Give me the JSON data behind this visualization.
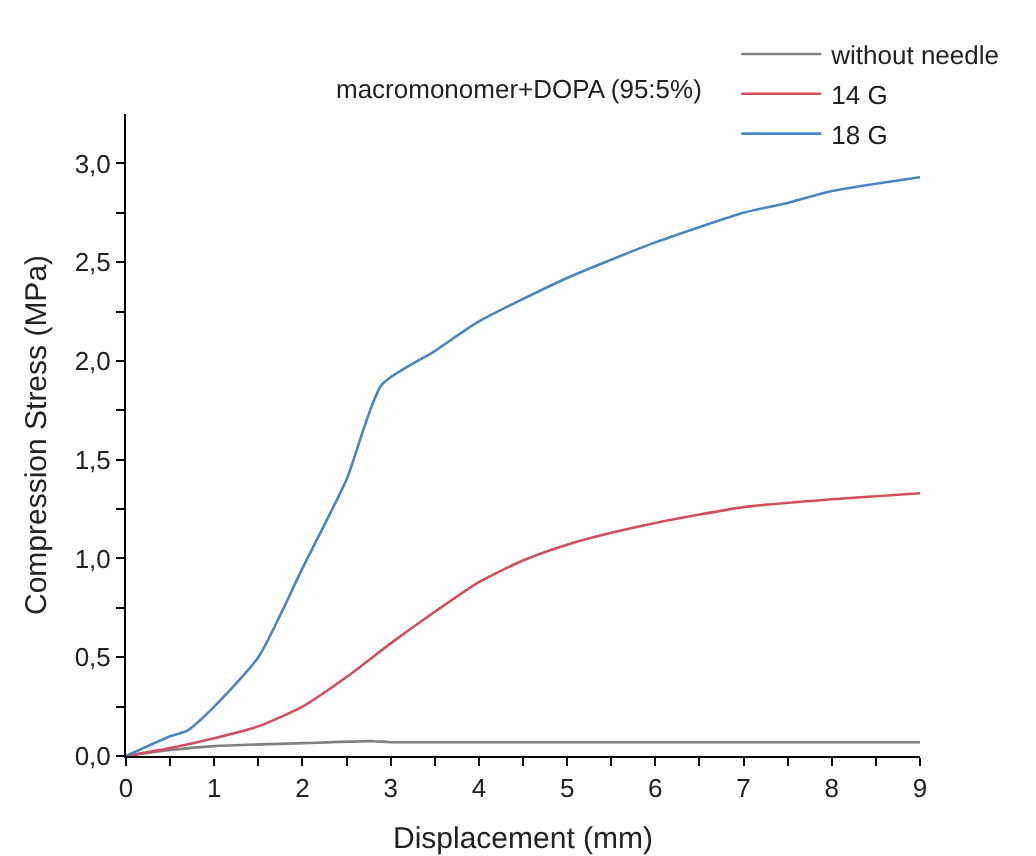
{
  "chart_data": {
    "type": "line",
    "xlabel": "Displacement (mm)",
    "ylabel": "Compression Stress (MPa)",
    "annotations": [
      "macromonomer+DOPA (95:5%)"
    ],
    "xlim": [
      0,
      9
    ],
    "ylim": [
      0,
      3.25
    ],
    "xticks": [
      0,
      {
        "value": 0.5,
        "label": null
      },
      1,
      {
        "value": 1.5,
        "label": null
      },
      2,
      {
        "value": 2.5,
        "label": null
      },
      3,
      {
        "value": 3.5,
        "label": null
      },
      4,
      {
        "value": 4.5,
        "label": null
      },
      5,
      {
        "value": 5.5,
        "label": null
      },
      6,
      {
        "value": 6.5,
        "label": null
      },
      7,
      {
        "value": 7.5,
        "label": null
      },
      8,
      {
        "value": 8.5,
        "label": null
      },
      9
    ],
    "yticks": [
      {
        "value": 0,
        "label": "0,0"
      },
      {
        "value": 0.25,
        "label": null
      },
      {
        "value": 0.5,
        "label": "0,5"
      },
      {
        "value": 0.75,
        "label": null
      },
      {
        "value": 1,
        "label": "1,0"
      },
      {
        "value": 1.25,
        "label": null
      },
      {
        "value": 1.5,
        "label": "1,5"
      },
      {
        "value": 1.75,
        "label": null
      },
      {
        "value": 2,
        "label": "2,0"
      },
      {
        "value": 2.25,
        "label": null
      },
      {
        "value": 2.5,
        "label": "2,5"
      },
      {
        "value": 2.75,
        "label": null
      },
      {
        "value": 3,
        "label": "3,0"
      }
    ],
    "grid": false,
    "legend": "top right",
    "marker": "none",
    "line_style": "solid",
    "series": [
      {
        "name": "without needle",
        "color": "#808080",
        "x": [
          0,
          0.5,
          1,
          2,
          2.8,
          3,
          9
        ],
        "values": [
          0,
          0.03,
          0.05,
          0.065,
          0.075,
          0.07,
          0.07
        ]
      },
      {
        "name": "14 G",
        "color": "#d05060",
        "x": [
          0,
          0.5,
          1,
          1.5,
          2,
          2.5,
          3,
          3.5,
          4,
          4.5,
          5,
          5.5,
          6,
          7,
          8,
          9
        ],
        "values": [
          0,
          0.04,
          0.09,
          0.15,
          0.25,
          0.4,
          0.57,
          0.73,
          0.88,
          0.99,
          1.07,
          1.13,
          1.18,
          1.26,
          1.3,
          1.33
        ]
      },
      {
        "name": "18 G",
        "color": "#4a86c0",
        "x": [
          0,
          0.5,
          0.7,
          1,
          1.5,
          2,
          2.5,
          2.9,
          3.5,
          4,
          5,
          6,
          7,
          7.5,
          8,
          9
        ],
        "values": [
          0,
          0.1,
          0.13,
          0.25,
          0.5,
          0.95,
          1.4,
          1.88,
          2.05,
          2.2,
          2.42,
          2.6,
          2.75,
          2.8,
          2.86,
          2.93
        ]
      }
    ]
  }
}
